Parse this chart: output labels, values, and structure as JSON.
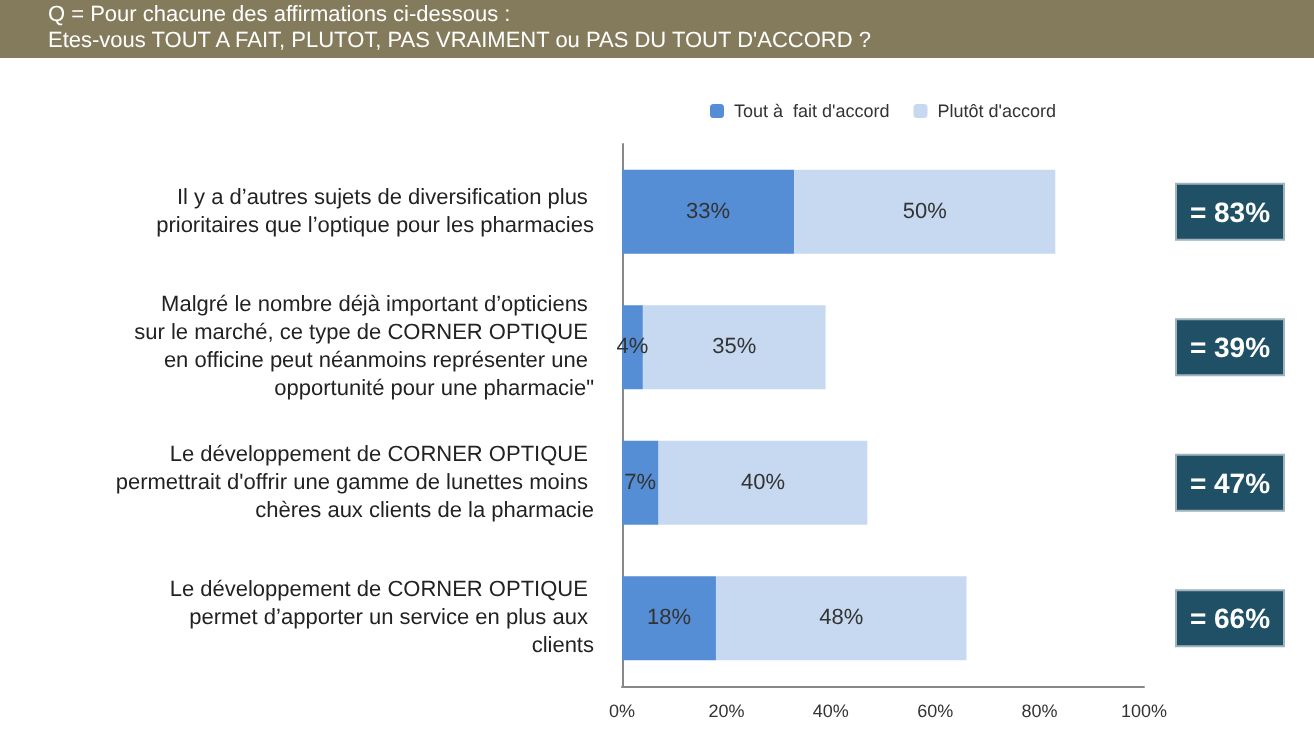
{
  "chart_data": {
    "type": "bar",
    "orientation": "horizontal",
    "stacked": true,
    "title": "Q = Pour chacune des affirmations ci-dessous :",
    "subtitle": "Etes-vous TOUT A FAIT, PLUTOT, PAS VRAIMENT ou PAS DU TOUT D'ACCORD ?",
    "categories": [
      "Il y a d’autres sujets de diversification plus prioritaires que l’optique pour les pharmacies",
      "Malgré le nombre déjà important d’opticiens sur le marché, ce type de CORNER OPTIQUE en officine peut néanmoins représenter une opportunité pour une pharmacie\"",
      "Le développement de CORNER OPTIQUE permettrait d'offrir une gamme de lunettes moins chères aux clients de la pharmacie",
      "Le développement de CORNER OPTIQUE permet d’apporter un service en plus aux clients"
    ],
    "series": [
      {
        "name": "Tout à  fait d'accord",
        "color": "#558ed5",
        "values": [
          33,
          4,
          7,
          18
        ],
        "value_labels": [
          "33%",
          "4%",
          "7%",
          "18%"
        ]
      },
      {
        "name": "Plutôt d'accord",
        "color": "#c6d9f1",
        "values": [
          50,
          35,
          40,
          48
        ],
        "value_labels": [
          "50%",
          "35%",
          "40%",
          "48%"
        ]
      }
    ],
    "annotations": [
      "= 83%",
      "= 39%",
      "= 47%",
      "= 66%"
    ],
    "xlim": [
      0,
      100
    ],
    "xticks": [
      {
        "value": 0,
        "label": "0%"
      },
      {
        "value": 20,
        "label": "20%"
      },
      {
        "value": 40,
        "label": "40%"
      },
      {
        "value": 60,
        "label": "60%"
      },
      {
        "value": 80,
        "label": "80%"
      },
      {
        "value": 100,
        "label": "100%"
      }
    ],
    "grid": false,
    "legend": "top"
  }
}
